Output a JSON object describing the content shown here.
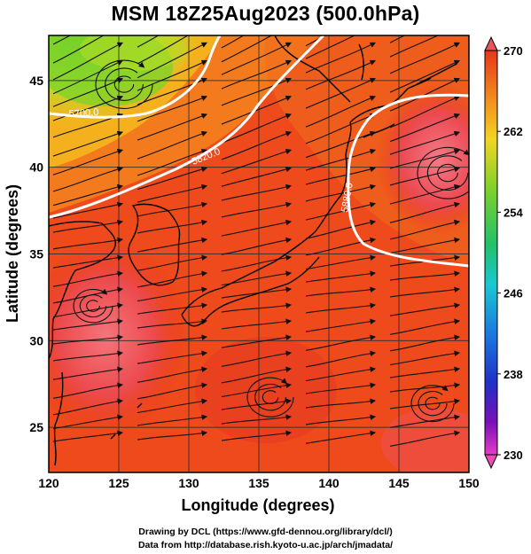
{
  "title": "MSM 18Z25Aug2023 (500.0hPa)",
  "map": {
    "x_ticks": [
      120,
      125,
      130,
      135,
      140,
      145,
      150
    ],
    "y_ticks": [
      25,
      30,
      35,
      40,
      45
    ],
    "x_label": "Longitude (degrees)",
    "y_label": "Latitude  (degrees)",
    "lon_range": [
      120,
      150
    ],
    "lat_range": [
      22.4,
      47.6
    ],
    "contour_labels": [
      "5700.0",
      "5820.0",
      "5880.0"
    ],
    "field_colors": {
      "warm": "#e8361a",
      "mid": "#f0601a",
      "orange": "#f79a1e",
      "yellow": "#f5d21e",
      "green": "#7ad42a",
      "pink": "#f06478"
    }
  },
  "colorbar": {
    "ticks": [
      270,
      262,
      254,
      246,
      238,
      230
    ],
    "range": [
      230,
      270
    ]
  },
  "credits": {
    "line1": "Drawing by DCL (https://www.gfd-dennou.org/library/dcl/)",
    "line2": "Data from http://database.rish.kyoto-u.ac.jp/arch/jmadata/"
  }
}
